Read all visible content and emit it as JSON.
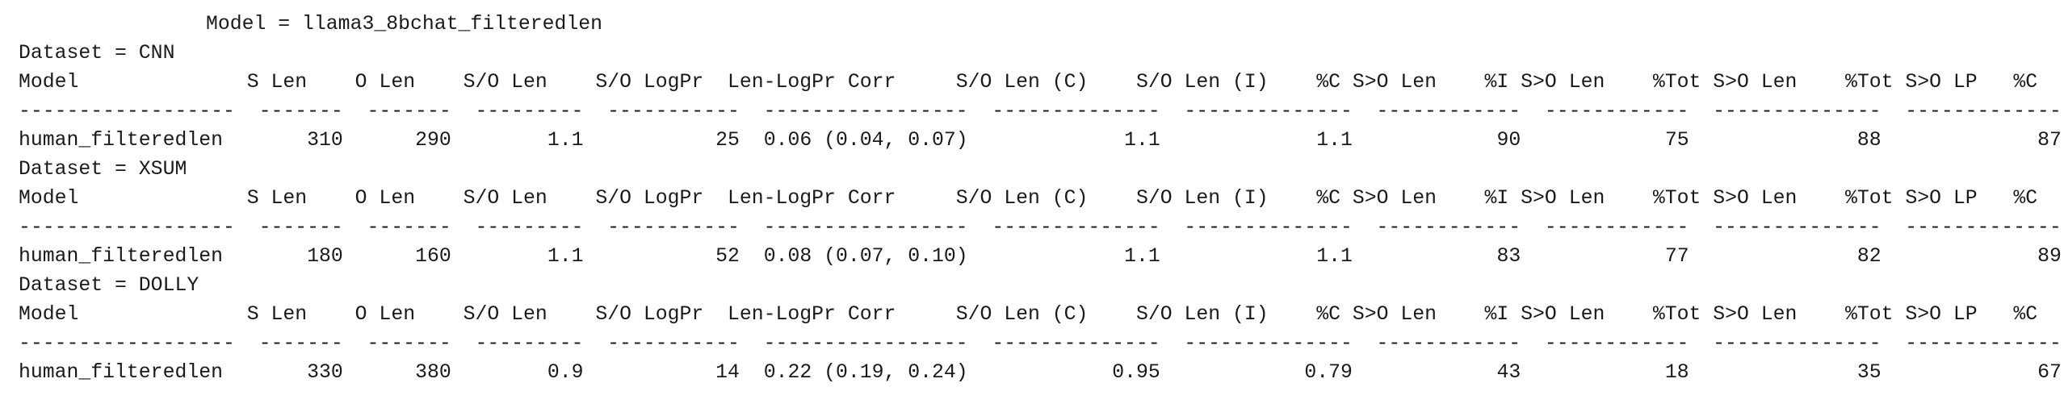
{
  "model_header": "Model = llama3_8bchat_filteredlen",
  "columns": [
    "Model",
    "S Len",
    "O Len",
    "S/O Len",
    "S/O LogPr",
    "Len-LogPr Corr",
    "S/O Len (C)",
    "S/O Len (I)",
    "%C S>O Len",
    "%I S>O Len",
    "%Tot S>O Len",
    "%Tot S>O LP",
    "%C"
  ],
  "datasets": [
    {
      "label": "Dataset = CNN",
      "row": [
        "human_filteredlen",
        "310",
        "290",
        "1.1",
        "25",
        "0.06 (0.04, 0.07)",
        "1.1",
        "1.1",
        "90",
        "75",
        "88",
        "87",
        "87"
      ]
    },
    {
      "label": "Dataset = XSUM",
      "row": [
        "human_filteredlen",
        "180",
        "160",
        "1.1",
        "52",
        "0.08 (0.07, 0.10)",
        "1.1",
        "1.1",
        "83",
        "77",
        "82",
        "89",
        "89"
      ]
    },
    {
      "label": "Dataset = DOLLY",
      "row": [
        "human_filteredlen",
        "330",
        "380",
        "0.9",
        "14",
        "0.22 (0.19, 0.24)",
        "0.95",
        "0.79",
        "43",
        "18",
        "35",
        "67",
        "67"
      ]
    }
  ]
}
